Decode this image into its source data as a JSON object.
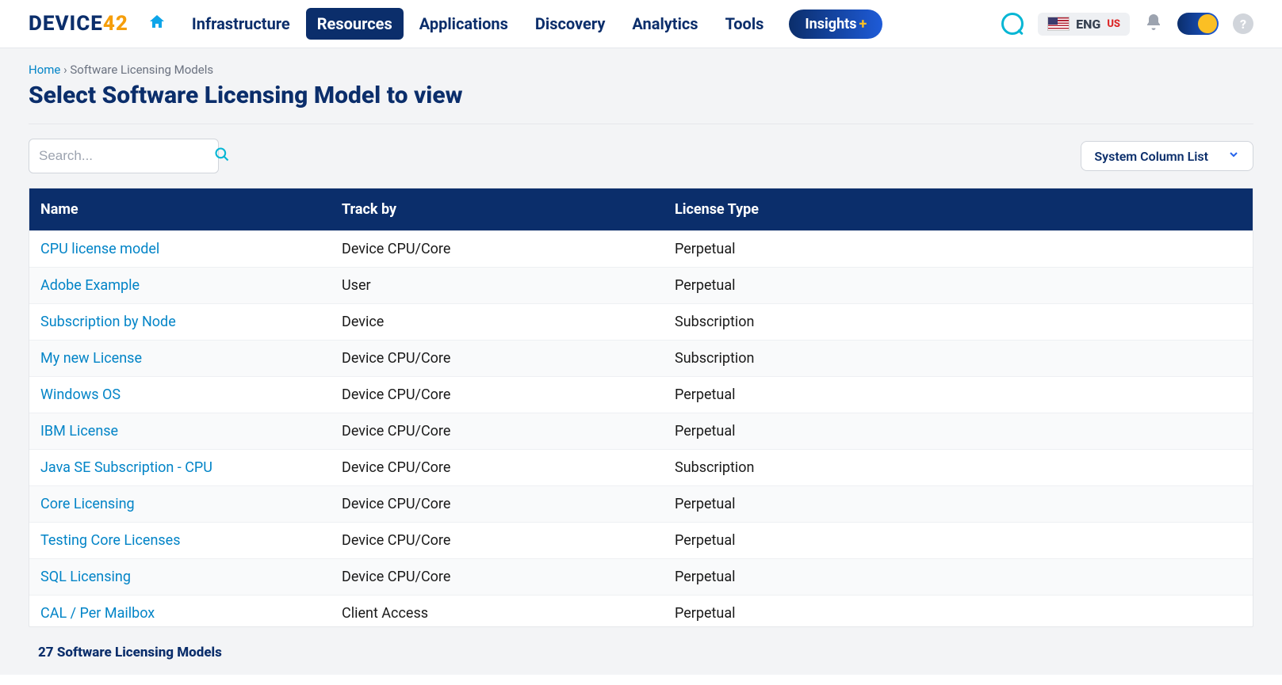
{
  "brand": {
    "name": "DEVICE",
    "suffix": "42"
  },
  "nav": {
    "items": [
      {
        "label": "Infrastructure"
      },
      {
        "label": "Resources",
        "active": true
      },
      {
        "label": "Applications"
      },
      {
        "label": "Discovery"
      },
      {
        "label": "Analytics"
      },
      {
        "label": "Tools"
      }
    ],
    "insights_label": "Insights",
    "lang_label": "ENG",
    "lang_region": "US"
  },
  "breadcrumbs": {
    "home": "Home",
    "sep": "›",
    "current": "Software Licensing Models"
  },
  "page_title": "Select Software Licensing Model to view",
  "search_placeholder": "Search...",
  "column_list_label": "System Column List",
  "table": {
    "columns": [
      "Name",
      "Track by",
      "License Type"
    ],
    "rows": [
      [
        "CPU license model",
        "Device CPU/Core",
        "Perpetual"
      ],
      [
        "Adobe Example",
        "User",
        "Perpetual"
      ],
      [
        "Subscription by Node",
        "Device",
        "Subscription"
      ],
      [
        "My new License",
        "Device CPU/Core",
        "Subscription"
      ],
      [
        "Windows OS",
        "Device CPU/Core",
        "Perpetual"
      ],
      [
        "IBM License",
        "Device CPU/Core",
        "Perpetual"
      ],
      [
        "Java SE Subscription - CPU",
        "Device CPU/Core",
        "Subscription"
      ],
      [
        "Core Licensing",
        "Device CPU/Core",
        "Perpetual"
      ],
      [
        "Testing Core Licenses",
        "Device CPU/Core",
        "Perpetual"
      ],
      [
        "SQL Licensing",
        "Device CPU/Core",
        "Perpetual"
      ],
      [
        "CAL / Per Mailbox",
        "Client Access",
        "Perpetual"
      ]
    ]
  },
  "footer_count": "27 Software Licensing Models"
}
